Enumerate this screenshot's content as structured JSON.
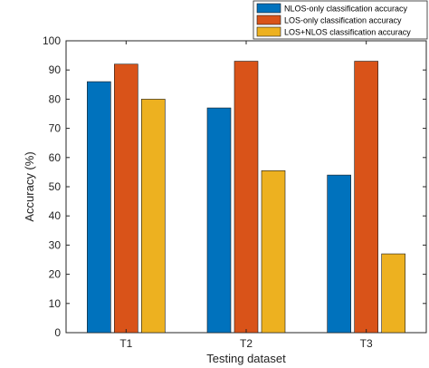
{
  "chart_data": {
    "type": "bar",
    "title": "",
    "xlabel": "Testing dataset",
    "ylabel": "Accuracy (%)",
    "categories": [
      "T1",
      "T2",
      "T3"
    ],
    "series": [
      {
        "name": "NLOS-only classification accuracy",
        "values": [
          86,
          77,
          54
        ],
        "color": "#0072BD"
      },
      {
        "name": "LOS-only classification accuracy",
        "values": [
          92,
          93,
          93
        ],
        "color": "#D95319"
      },
      {
        "name": "LOS+NLOS classification accuracy",
        "values": [
          80,
          55.5,
          27
        ],
        "color": "#EDB120"
      }
    ],
    "ylim": [
      0,
      100
    ],
    "yticks": [
      0,
      10,
      20,
      30,
      40,
      50,
      60,
      70,
      80,
      90,
      100
    ],
    "grid": false,
    "legend_position": "top-right"
  }
}
